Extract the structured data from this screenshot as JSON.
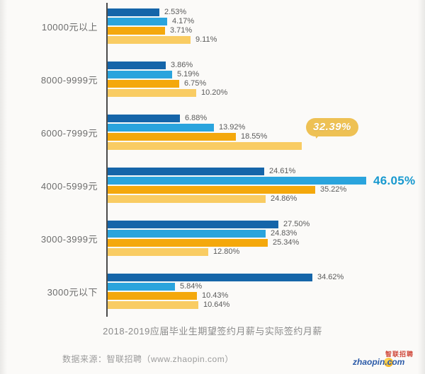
{
  "chart_data": {
    "type": "bar",
    "orientation": "horizontal",
    "title": "2018-2019应届毕业生期望签约月薪与实际签约月薪",
    "categories": [
      "10000元以上",
      "8000-9999元",
      "6000-7999元",
      "4000-5999元",
      "3000-3999元",
      "3000元以下"
    ],
    "series": [
      {
        "name": "series-1-dark-blue",
        "color": "#1565a9",
        "values": [
          2.53,
          3.86,
          6.88,
          24.61,
          27.5,
          34.62
        ]
      },
      {
        "name": "series-2-light-blue",
        "color": "#2aa4dd",
        "values": [
          4.17,
          5.19,
          13.92,
          46.05,
          24.83,
          5.84
        ]
      },
      {
        "name": "series-3-amber",
        "color": "#f4a80c",
        "values": [
          3.71,
          6.75,
          18.55,
          35.22,
          25.34,
          10.43
        ]
      },
      {
        "name": "series-4-light-yellow",
        "color": "#f9cc63",
        "values": [
          9.11,
          10.2,
          32.39,
          24.86,
          12.8,
          10.64
        ]
      }
    ],
    "value_suffix": "%",
    "axis_color": "#4a4a4a",
    "legend": "none-visible",
    "annotations": {
      "callout": {
        "category_index": 2,
        "series_index": 3,
        "label": "32.39%",
        "bubble_color": "#eec154"
      },
      "highlight": {
        "category_index": 3,
        "series_index": 1,
        "label": "46.05%",
        "color": "#1899cf"
      }
    }
  },
  "footer": {
    "source": "数据来源：智联招聘（www.zhaopin.com）",
    "logo": {
      "en": "zhaopin.com",
      "cn": "智联招聘"
    }
  }
}
